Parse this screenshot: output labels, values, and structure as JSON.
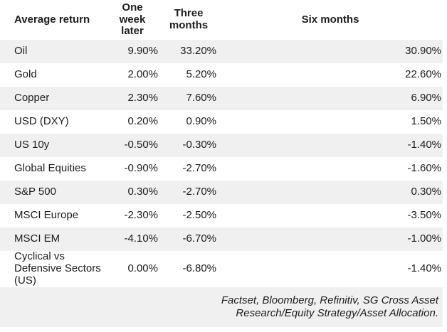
{
  "colors": {
    "stripe": "#f0f0f0",
    "background": "#ffffff",
    "text": "#1c1c1c"
  },
  "chart_data": {
    "type": "table",
    "columns": [
      "Average return",
      "One week later",
      "Three months",
      "Six months"
    ],
    "rows": [
      {
        "label": "Oil",
        "values": [
          "9.90%",
          "33.20%",
          "30.90%"
        ]
      },
      {
        "label": "Gold",
        "values": [
          "2.00%",
          "5.20%",
          "22.60%"
        ]
      },
      {
        "label": "Copper",
        "values": [
          "2.30%",
          "7.60%",
          "6.90%"
        ]
      },
      {
        "label": "USD (DXY)",
        "values": [
          "0.20%",
          "0.90%",
          "1.50%"
        ]
      },
      {
        "label": "US 10y",
        "values": [
          "-0.50%",
          "-0.30%",
          "-1.40%"
        ]
      },
      {
        "label": "Global Equities",
        "values": [
          "-0.90%",
          "-2.70%",
          "-1.60%"
        ]
      },
      {
        "label": "S&P 500",
        "values": [
          "0.30%",
          "-2.70%",
          "0.30%"
        ]
      },
      {
        "label": "MSCI Europe",
        "values": [
          "-2.30%",
          "-2.50%",
          "-3.50%"
        ]
      },
      {
        "label": "MSCI EM",
        "values": [
          "-4.10%",
          "-6.70%",
          "-1.00%"
        ]
      },
      {
        "label": "Cyclical vs Defensive Sectors (US)",
        "values": [
          "0.00%",
          "-6.80%",
          "-1.40%"
        ]
      }
    ],
    "source_note": "Factset, Bloomberg, Refinitiv, SG Cross Asset Research/Equity Strategy/Asset Allocation."
  }
}
